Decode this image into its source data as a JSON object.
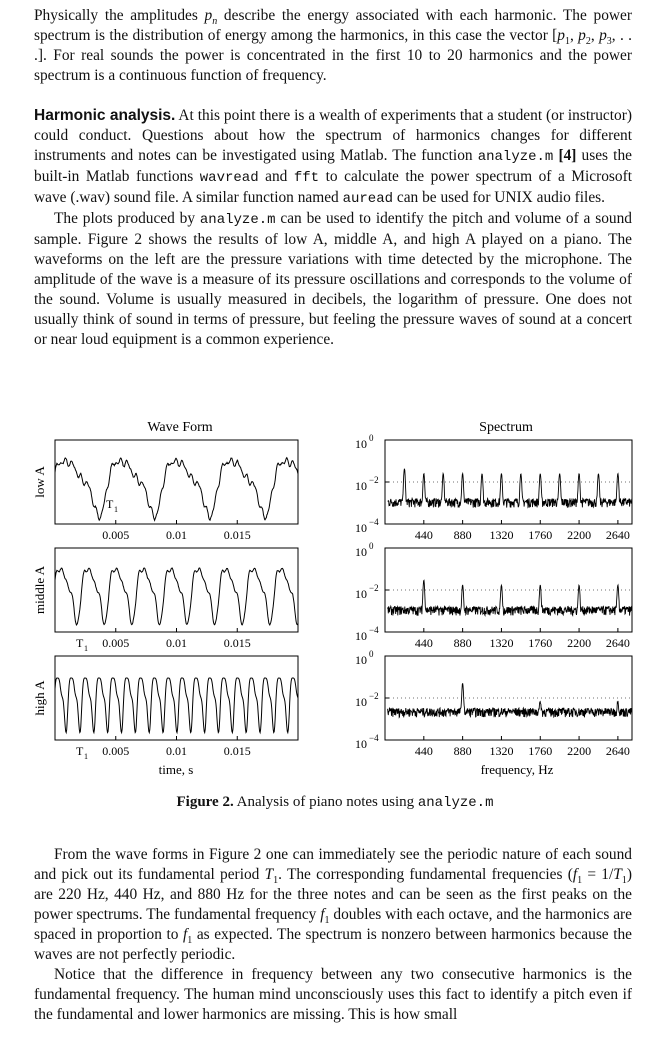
{
  "para1": {
    "t1": "Physically the amplitudes ",
    "v1": "p",
    "s1": "n",
    "t2": " describe the energy associated with each harmonic. The power spectrum is the distribution of energy among the harmonics, in this case the vector [",
    "v2": "p",
    "s2": "1",
    "t3": ", ",
    "v3": "p",
    "s3": "2",
    "t4": ", ",
    "v4": "p",
    "s4": "3",
    "t5": ", . . .]. For real sounds the power is concentrated in the first 10 to 20 harmonics and the power spectrum is a continuous function of frequency."
  },
  "para2": {
    "heading": "Harmonic analysis.",
    "t1": " At this point there is a wealth of experiments that a student (or instructor) could conduct. Questions about how the spectrum of harmonics changes for different instruments and notes can be investigated using Matlab. The function ",
    "c1": "analyze.m",
    "t2": " ",
    "ref": "[4]",
    "t3": " uses the built-in Matlab functions ",
    "c2": "wavread",
    "t4": " and ",
    "c3": "fft",
    "t5": " to calculate the power spectrum of a Microsoft wave (.wav) sound file. A similar function named ",
    "c4": "auread",
    "t6": " can be used for UNIX audio files."
  },
  "para3": {
    "t1": "The plots produced by ",
    "c1": "analyze.m",
    "t2": " can be used to identify the pitch and volume of a sound sample. Figure 2 shows the results of low A, middle A, and high A played on a piano. The waveforms on the left are the pressure variations with time detected by the microphone. The amplitude of the wave is a measure of its pressure oscillations and corresponds to the volume of the sound. Volume is usually measured in decibels, the logarithm of pressure. One does not usually think of sound in terms of pressure, but feeling the pressure waves of sound at a concert or near loud equipment is a common experience."
  },
  "figure": {
    "left_title": "Wave Form",
    "right_title": "Spectrum",
    "rows": [
      {
        "label": "low A",
        "period_label": "T",
        "period_sub": "1"
      },
      {
        "label": "middle A",
        "period_label": "T",
        "period_sub": "1"
      },
      {
        "label": "high A",
        "period_label": "T",
        "period_sub": "1"
      }
    ],
    "time_ticks": [
      "0.005",
      "0.01",
      "0.015"
    ],
    "freq_ticks": [
      "440",
      "880",
      "1320",
      "1760",
      "2200",
      "2640"
    ],
    "y_ticks": [
      {
        "base": "10",
        "exp": "0"
      },
      {
        "base": "10",
        "exp": "−2"
      },
      {
        "base": "10",
        "exp": "−4"
      }
    ],
    "xlabel_left": "time, s",
    "xlabel_right": "frequency, Hz",
    "caption_bold": "Figure 2.",
    "caption_text": " Analysis of piano notes using ",
    "caption_code": "analyze.m"
  },
  "para4": {
    "t1": "From the wave forms in Figure 2 one can immediately see the periodic nature of each sound and pick out its fundamental period ",
    "v1": "T",
    "s1": "1",
    "t2": ". The corresponding fundamental frequencies (",
    "v2": "f",
    "s2": "1",
    "t3": " = 1/",
    "v3": "T",
    "s3": "1",
    "t4": ") are 220 Hz, 440 Hz, and 880 Hz for the three notes and can be seen as the first peaks on the power spectrums. The fundamental frequency ",
    "v4": "f",
    "s4": "1",
    "t5": " doubles with each octave, and the harmonics are spaced in proportion to ",
    "v5": "f",
    "s5": "1",
    "t6": " as expected. The spectrum is nonzero between harmonics because the waves are not perfectly periodic."
  },
  "para5": {
    "t1": "Notice that the difference in frequency between any two consecutive harmonics is the fundamental frequency. The human mind unconsciously uses this fact to identify a pitch even if the fundamental and lower harmonics are missing. This is how small"
  },
  "chart_data": [
    {
      "type": "line",
      "title": "Wave Form",
      "xlabel": "time, s",
      "ylabel": "",
      "xlim": [
        0,
        0.02
      ],
      "x_ticks": [
        0.005,
        0.01,
        0.015
      ],
      "series": [
        {
          "name": "low A",
          "fundamental_hz": 220,
          "period_s": 0.00455
        },
        {
          "name": "middle A",
          "fundamental_hz": 440,
          "period_s": 0.00227
        },
        {
          "name": "high A",
          "fundamental_hz": 880,
          "period_s": 0.00114
        }
      ]
    },
    {
      "type": "line",
      "title": "Spectrum",
      "xlabel": "frequency, Hz",
      "ylabel": "",
      "y_scale": "log",
      "ylim": [
        0.0001,
        1
      ],
      "xlim": [
        0,
        2800
      ],
      "x_ticks": [
        440,
        880,
        1320,
        1760,
        2200,
        2640
      ],
      "series": [
        {
          "name": "low A",
          "peaks_hz": [
            220,
            440,
            660,
            880,
            1100,
            1320,
            1540,
            1760,
            1980,
            2200,
            2420,
            2640
          ],
          "peak_level": 0.03
        },
        {
          "name": "middle A",
          "peaks_hz": [
            440,
            880,
            1320,
            1760,
            2200,
            2640
          ],
          "peak_level": 0.02
        },
        {
          "name": "high A",
          "peaks_hz": [
            880,
            1760,
            2640
          ],
          "peak_level": 0.006
        }
      ]
    }
  ]
}
